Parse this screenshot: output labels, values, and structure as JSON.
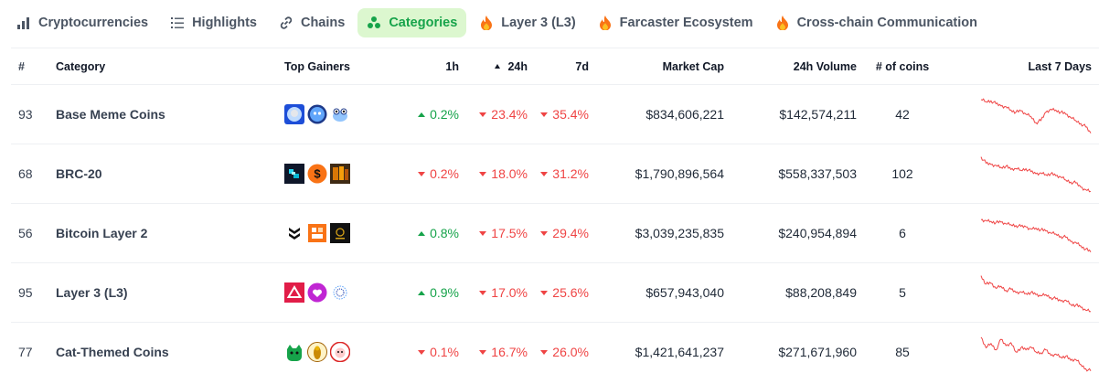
{
  "tabs": [
    {
      "label": "Cryptocurrencies",
      "icon": "bar-chart-icon",
      "active": false
    },
    {
      "label": "Highlights",
      "icon": "list-icon",
      "active": false
    },
    {
      "label": "Chains",
      "icon": "link-icon",
      "active": false
    },
    {
      "label": "Categories",
      "icon": "categories-icon",
      "active": true
    },
    {
      "label": "Layer 3 (L3)",
      "icon": "fire-icon",
      "active": false
    },
    {
      "label": "Farcaster Ecosystem",
      "icon": "fire-icon",
      "active": false
    },
    {
      "label": "Cross-chain Communication",
      "icon": "fire-icon",
      "active": false
    }
  ],
  "table": {
    "headers": {
      "rank": "#",
      "category": "Category",
      "top_gainers": "Top Gainers",
      "h1": "1h",
      "h24": "24h",
      "d7": "7d",
      "market_cap": "Market Cap",
      "volume": "24h Volume",
      "coins": "# of coins",
      "last7": "Last 7 Days"
    },
    "sorted_by": "24h",
    "rows": [
      {
        "rank": "93",
        "name": "Base Meme Coins",
        "h1": "0.2%",
        "h1_dir": "up",
        "h24": "23.4%",
        "h24_dir": "down",
        "d7": "35.4%",
        "d7_dir": "down",
        "market_cap": "$834,606,221",
        "volume": "$142,574,211",
        "coins": "42",
        "gainer_icons": [
          "bald-eagle-coin-icon",
          "brett-coin-icon",
          "frog-coin-icon"
        ],
        "trend": [
          0.85,
          0.8,
          0.82,
          0.75,
          0.7,
          0.68,
          0.6,
          0.55,
          0.58,
          0.5,
          0.45,
          0.3,
          0.35,
          0.55,
          0.62,
          0.6,
          0.55,
          0.5,
          0.42,
          0.35,
          0.28,
          0.2,
          0.05
        ]
      },
      {
        "rank": "68",
        "name": "BRC-20",
        "h1": "0.2%",
        "h1_dir": "down",
        "h24": "18.0%",
        "h24_dir": "down",
        "d7": "31.2%",
        "d7_dir": "down",
        "market_cap": "$1,790,896,564",
        "volume": "$558,337,503",
        "coins": "102",
        "gainer_icons": [
          "pixel-coin-icon",
          "dollar-coin-icon",
          "ordinal-art-coin-icon"
        ],
        "trend": [
          0.9,
          0.75,
          0.72,
          0.7,
          0.65,
          0.68,
          0.6,
          0.62,
          0.58,
          0.62,
          0.55,
          0.5,
          0.52,
          0.48,
          0.5,
          0.45,
          0.42,
          0.35,
          0.3,
          0.28,
          0.18,
          0.12,
          0.08
        ]
      },
      {
        "rank": "56",
        "name": "Bitcoin Layer 2",
        "h1": "0.8%",
        "h1_dir": "up",
        "h24": "17.5%",
        "h24_dir": "down",
        "d7": "29.4%",
        "d7_dir": "down",
        "market_cap": "$3,039,235,835",
        "volume": "$240,954,894",
        "coins": "6",
        "gainer_icons": [
          "chevrons-coin-icon",
          "orange-block-coin-icon",
          "black-badge-coin-icon"
        ],
        "trend": [
          0.82,
          0.8,
          0.78,
          0.75,
          0.76,
          0.72,
          0.7,
          0.68,
          0.66,
          0.65,
          0.6,
          0.62,
          0.58,
          0.55,
          0.5,
          0.48,
          0.42,
          0.4,
          0.3,
          0.28,
          0.2,
          0.12,
          0.05
        ]
      },
      {
        "rank": "95",
        "name": "Layer 3 (L3)",
        "h1": "0.9%",
        "h1_dir": "up",
        "h24": "17.0%",
        "h24_dir": "down",
        "d7": "25.6%",
        "d7_dir": "down",
        "market_cap": "$657,943,040",
        "volume": "$88,208,849",
        "coins": "5",
        "gainer_icons": [
          "red-triangle-coin-icon",
          "heart-coin-icon",
          "dotted-globe-coin-icon"
        ],
        "trend": [
          0.9,
          0.7,
          0.72,
          0.6,
          0.65,
          0.55,
          0.58,
          0.5,
          0.52,
          0.48,
          0.5,
          0.45,
          0.42,
          0.45,
          0.38,
          0.35,
          0.3,
          0.32,
          0.22,
          0.2,
          0.15,
          0.08,
          0.05
        ]
      },
      {
        "rank": "77",
        "name": "Cat-Themed Coins",
        "h1": "0.1%",
        "h1_dir": "down",
        "h24": "16.7%",
        "h24_dir": "down",
        "d7": "26.0%",
        "d7_dir": "down",
        "market_cap": "$1,421,641,237",
        "volume": "$271,671,960",
        "coins": "85",
        "gainer_icons": [
          "green-cat-coin-icon",
          "yellow-cat-coin-icon",
          "red-cat-coin-icon"
        ],
        "trend": [
          0.85,
          0.6,
          0.7,
          0.55,
          0.8,
          0.65,
          0.72,
          0.5,
          0.6,
          0.55,
          0.62,
          0.5,
          0.48,
          0.55,
          0.42,
          0.45,
          0.38,
          0.4,
          0.3,
          0.32,
          0.2,
          0.1,
          0.05
        ]
      }
    ]
  },
  "colors": {
    "up": "#16a34a",
    "down": "#ef4444",
    "accent_bg": "#dcf7cf",
    "spark": "#ef4444"
  }
}
